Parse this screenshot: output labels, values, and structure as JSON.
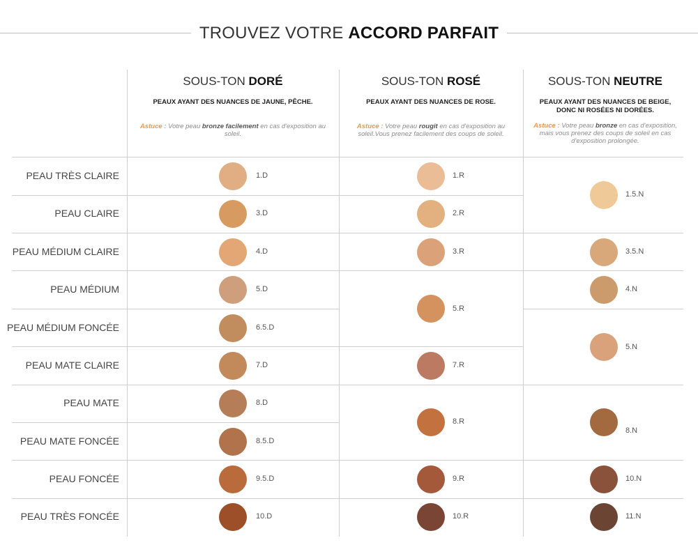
{
  "title": {
    "light": "TROUVEZ VOTRE ",
    "bold": "ACCORD PARFAIT"
  },
  "columns": [
    {
      "heading_light": "SOUS-TON ",
      "heading_bold": "DORÉ",
      "description": "PEAUX AYANT DES NUANCES DE JAUNE, PÊCHE.",
      "tip_label": "Astuce :",
      "tip_pre": " Votre peau ",
      "tip_bold": "bronze facilement",
      "tip_post": " en cas d'exposition au soleil."
    },
    {
      "heading_light": "SOUS-TON ",
      "heading_bold": "ROSÉ",
      "description": "PEAUX AYANT DES NUANCES DE ROSE.",
      "tip_label": "Astuce :",
      "tip_pre": " Votre peau ",
      "tip_bold": "rougit",
      "tip_post": " en cas d'exposition au soleil.Vous prenez facilement des coups de soleil."
    },
    {
      "heading_light": "SOUS-TON ",
      "heading_bold": "NEUTRE",
      "description": "PEAUX AYANT DES NUANCES DE BEIGE, DONC NI ROSÉES NI DORÉES.",
      "tip_label": "Astuce :",
      "tip_pre": " Votre peau ",
      "tip_bold": "bronze",
      "tip_post": " en cas d'exposition, mais vous prenez des coups de soleil en cas d'exposition prolongée."
    }
  ],
  "rows": [
    "PEAU TRÈS CLAIRE",
    "PEAU CLAIRE",
    "PEAU MÉDIUM CLAIRE",
    "PEAU MÉDIUM",
    "PEAU MÉDIUM FONCÉE",
    "PEAU MATE CLAIRE",
    "PEAU MATE",
    "PEAU MATE FONCÉE",
    "PEAU FONCÉE",
    "PEAU TRÈS FONCÉE"
  ],
  "dore": [
    {
      "code": "1.D",
      "color": "#e0ae82"
    },
    {
      "code": "3.D",
      "color": "#d79b62"
    },
    {
      "code": "4.D",
      "color": "#e2a774"
    },
    {
      "code": "5.D",
      "color": "#cf9e7c"
    },
    {
      "code": "6.5.D",
      "color": "#c28d5e"
    },
    {
      "code": "7.D",
      "color": "#c2895a"
    },
    {
      "code": "8.D",
      "color": "#b57e58"
    },
    {
      "code": "8.5.D",
      "color": "#b0734b"
    },
    {
      "code": "9.5.D",
      "color": "#b96b3c"
    },
    {
      "code": "10.D",
      "color": "#9c4f28"
    }
  ],
  "rose": [
    {
      "code": "1.R",
      "color": "#ebbd97"
    },
    {
      "code": "2.R",
      "color": "#e3b080"
    },
    {
      "code": "3.R",
      "color": "#dba27a"
    },
    {
      "code": "5.R",
      "color": "#d4925f"
    },
    {
      "code": "7.R",
      "color": "#bb7a61"
    },
    {
      "code": "8.R",
      "color": "#c3713f"
    },
    {
      "code": "9.R",
      "color": "#a4593a"
    },
    {
      "code": "10.R",
      "color": "#7b4535"
    }
  ],
  "neutre": [
    {
      "code": "1.5.N",
      "color": "#f0c998"
    },
    {
      "code": "3.5.N",
      "color": "#d8a77a"
    },
    {
      "code": "4.N",
      "color": "#cc9b6c"
    },
    {
      "code": "5.N",
      "color": "#d9a27a"
    },
    {
      "code": "8.N",
      "color": "#a3693f"
    },
    {
      "code": "10.N",
      "color": "#8a523a"
    },
    {
      "code": "11.N",
      "color": "#6c4434"
    }
  ]
}
